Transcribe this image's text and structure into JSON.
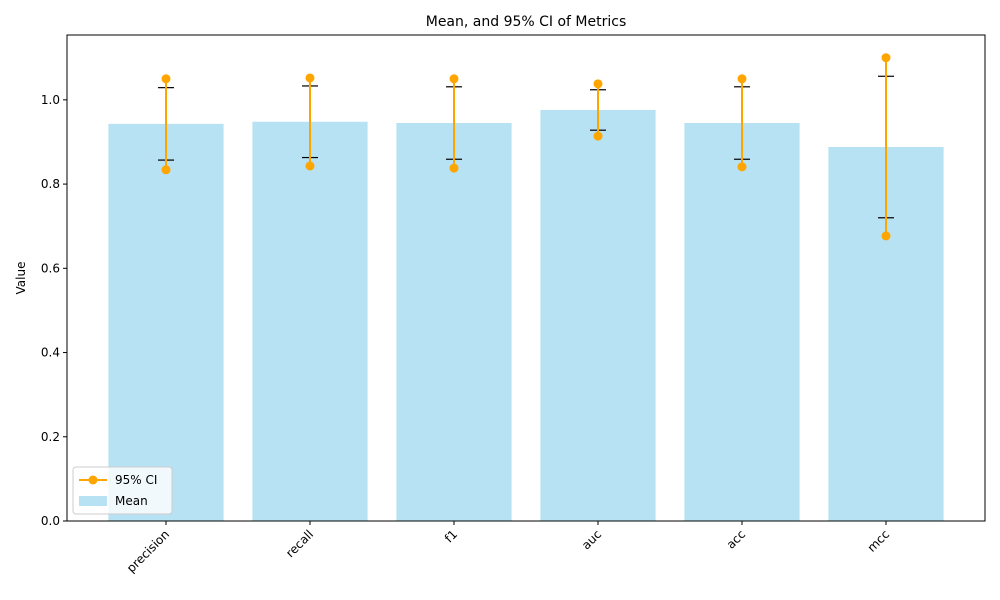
{
  "chart_data": {
    "type": "bar",
    "title": "Mean, and 95% CI of Metrics",
    "y_label": "Value",
    "categories": [
      "precision",
      "recall",
      "f1",
      "auc",
      "acc",
      "mcc"
    ],
    "series": [
      {
        "name": "95% CI",
        "color": "#ffa500",
        "low": [
          0.834,
          0.843,
          0.838,
          0.914,
          0.841,
          0.677
        ],
        "high": [
          1.05,
          1.052,
          1.05,
          1.038,
          1.05,
          1.1
        ]
      },
      {
        "name": "Mean",
        "color": "#87ceeb",
        "values": [
          0.943,
          0.948,
          0.945,
          0.976,
          0.945,
          0.888
        ],
        "errors": [
          0.086,
          0.085,
          0.086,
          0.048,
          0.086,
          0.168
        ]
      }
    ],
    "ylim": [
      0,
      1.154
    ],
    "yticks": [
      {
        "value": 0,
        "label": "0.0"
      },
      0.2,
      0.4,
      0.6,
      0.8,
      {
        "value": 1,
        "label": "1.0"
      }
    ],
    "legend": "lower left"
  }
}
